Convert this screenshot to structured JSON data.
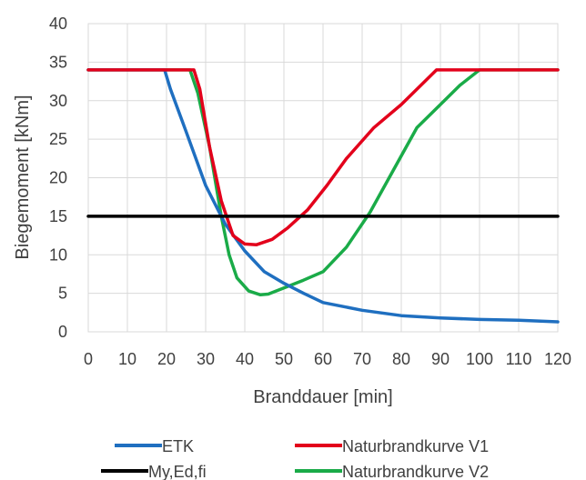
{
  "chart_data": {
    "type": "line",
    "title": "",
    "xlabel": "Branddauer [min]",
    "ylabel": "Biegemoment [kNm]",
    "xlim": [
      0,
      120
    ],
    "ylim": [
      0,
      40
    ],
    "xticks": [
      "0",
      "10",
      "20",
      "30",
      "40",
      "50",
      "60",
      "70",
      "80",
      "90",
      "100",
      "110",
      "120"
    ],
    "yticks": [
      "0",
      "5",
      "10",
      "15",
      "20",
      "25",
      "30",
      "35",
      "40"
    ],
    "grid": true,
    "legend_position": "bottom",
    "series": [
      {
        "name": "ETK",
        "color": "#1f6fc0",
        "x": [
          0,
          19.5,
          21,
          25,
          30,
          35,
          40,
          45,
          50,
          55,
          60,
          70,
          80,
          90,
          100,
          110,
          120
        ],
        "y": [
          34,
          34,
          31.5,
          26,
          19,
          14,
          10.5,
          7.8,
          6.3,
          5,
          3.8,
          2.8,
          2.1,
          1.8,
          1.6,
          1.5,
          1.3
        ]
      },
      {
        "name": "My,Ed,fi",
        "color": "#000000",
        "x": [
          0,
          120
        ],
        "y": [
          15,
          15
        ]
      },
      {
        "name": "Naturbrandkurve V1",
        "color": "#e3001b",
        "x": [
          0,
          27,
          28.5,
          31,
          34,
          37,
          40,
          43,
          47,
          51,
          56,
          61,
          66,
          73,
          80,
          86,
          89,
          95,
          105,
          120
        ],
        "y": [
          34,
          34,
          31.5,
          24,
          17,
          12.5,
          11.4,
          11.3,
          12,
          13.5,
          15.8,
          19,
          22.5,
          26.5,
          29.5,
          32.5,
          34,
          34,
          34,
          34
        ]
      },
      {
        "name": "Naturbrandkurve V2",
        "color": "#1aab48",
        "x": [
          0,
          26,
          28,
          31,
          34,
          36,
          38,
          41,
          44,
          46,
          50,
          55,
          60,
          66,
          72,
          78,
          84,
          90,
          95,
          100,
          120
        ],
        "y": [
          34,
          34,
          31,
          24,
          15,
          10,
          7,
          5.3,
          4.8,
          4.9,
          5.7,
          6.7,
          7.8,
          11,
          15.5,
          21,
          26.5,
          29.5,
          32,
          34,
          34
        ]
      }
    ]
  }
}
